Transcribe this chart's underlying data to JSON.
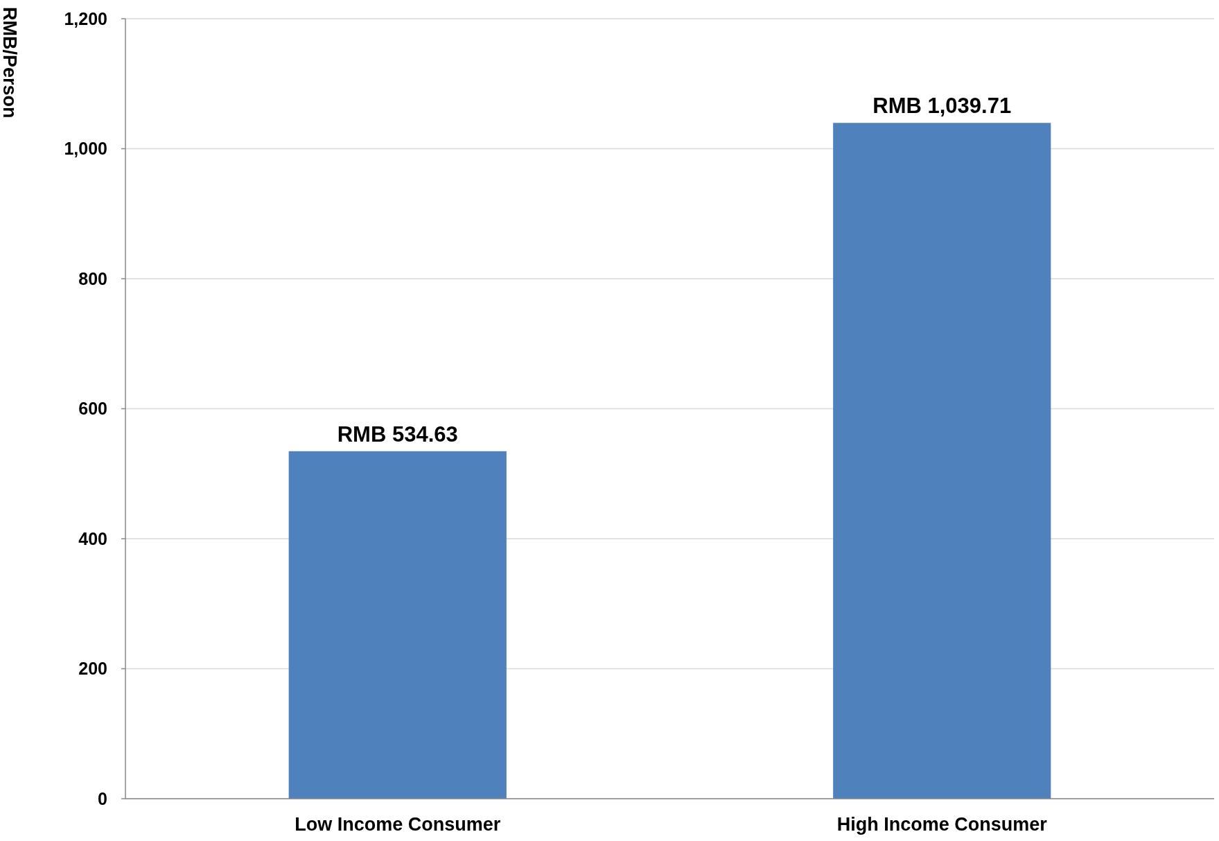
{
  "chart_data": {
    "type": "bar",
    "ylabel": "RMB/Person",
    "categories": [
      "Low Income Consumer",
      "High Income Consumer"
    ],
    "values": [
      534.63,
      1039.71
    ],
    "value_labels": [
      "RMB 534.63",
      "RMB 1,039.71"
    ],
    "color": "#4f81bd",
    "ylim": [
      0,
      1200
    ],
    "yticks": [
      0,
      200,
      400,
      600,
      800,
      {
        "value": 1000,
        "label": "1,000"
      },
      {
        "value": 1200,
        "label": "1,200"
      }
    ],
    "grid": "y"
  }
}
